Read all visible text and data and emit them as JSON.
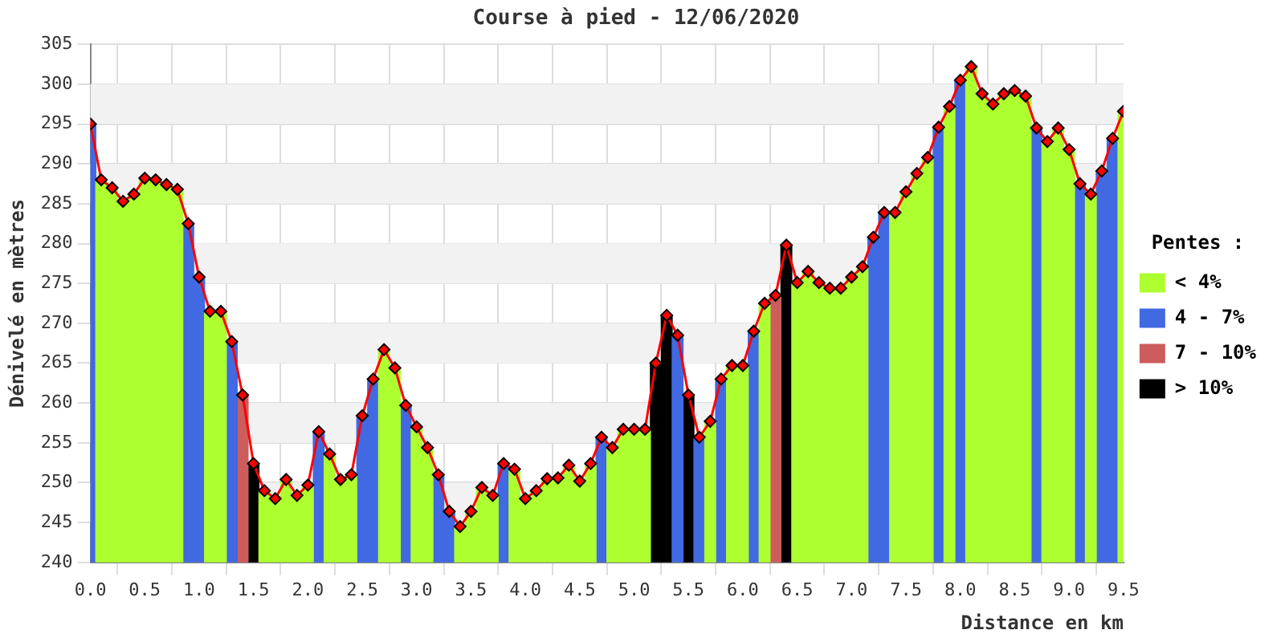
{
  "chart_data": {
    "type": "bar",
    "title": "Course à pied - 12/06/2020",
    "xlabel": "Distance en km",
    "ylabel": "Dénivelé en mètres",
    "legend_title": "Pentes :",
    "legend": "right",
    "grid": true,
    "x": [
      0,
      0.1,
      0.2,
      0.3,
      0.4,
      0.5,
      0.6,
      0.7,
      0.8,
      0.9,
      1,
      1.1,
      1.2,
      1.3,
      1.4,
      1.5,
      1.6,
      1.7,
      1.8,
      1.9,
      2,
      2.1,
      2.2,
      2.3,
      2.4,
      2.5,
      2.6,
      2.7,
      2.8,
      2.9,
      3,
      3.1,
      3.2,
      3.3,
      3.4,
      3.5,
      3.6,
      3.7,
      3.8,
      3.9,
      4,
      4.1,
      4.2,
      4.3,
      4.4,
      4.5,
      4.6,
      4.7,
      4.8,
      4.9,
      5,
      5.1,
      5.2,
      5.3,
      5.4,
      5.5,
      5.6,
      5.7,
      5.8,
      5.9,
      6,
      6.1,
      6.2,
      6.3,
      6.4,
      6.5,
      6.6,
      6.7,
      6.8,
      6.9,
      7,
      7.1,
      7.2,
      7.3,
      7.4,
      7.5,
      7.6,
      7.7,
      7.8,
      7.9,
      8,
      8.1,
      8.2,
      8.3,
      8.4,
      8.5,
      8.6,
      8.7,
      8.8,
      8.9,
      9,
      9.1,
      9.2,
      9.3,
      9.4,
      9.5
    ],
    "xlim": [
      0,
      9.5
    ],
    "xticks": [
      {
        "value": 0,
        "label": "0.0"
      },
      {
        "value": 0.5,
        "label": "0.5"
      },
      {
        "value": 1,
        "label": "1.0"
      },
      {
        "value": 1.5,
        "label": "1.5"
      },
      {
        "value": 2,
        "label": "2.0"
      },
      {
        "value": 2.5,
        "label": "2.5"
      },
      {
        "value": 3,
        "label": "3.0"
      },
      {
        "value": 3.5,
        "label": "3.5"
      },
      {
        "value": 4,
        "label": "4.0"
      },
      {
        "value": 4.5,
        "label": "4.5"
      },
      {
        "value": 5,
        "label": "5.0"
      },
      {
        "value": 5.5,
        "label": "5.5"
      },
      {
        "value": 6,
        "label": "6.0"
      },
      {
        "value": 6.5,
        "label": "6.5"
      },
      {
        "value": 7,
        "label": "7.0"
      },
      {
        "value": 7.5,
        "label": "7.5"
      },
      {
        "value": 8,
        "label": "8.0"
      },
      {
        "value": 8.5,
        "label": "8.5"
      },
      {
        "value": 9,
        "label": "9.0"
      },
      {
        "value": 9.5,
        "label": "9.5"
      }
    ],
    "ylim": [
      240,
      305
    ],
    "yticks": [
      240,
      245,
      250,
      255,
      260,
      265,
      270,
      275,
      280,
      285,
      290,
      295,
      300,
      305
    ],
    "series": [
      {
        "name": "< 4%",
        "color": "#adff2f",
        "values": [
          null,
          288,
          287,
          285.3,
          286.2,
          288.2,
          288,
          287.4,
          286.8,
          null,
          null,
          271.5,
          271.5,
          null,
          null,
          null,
          249,
          248,
          250.4,
          248.4,
          249.7,
          null,
          253.6,
          250.4,
          251,
          null,
          null,
          266.7,
          264.4,
          null,
          257,
          254.4,
          null,
          null,
          244.5,
          246.4,
          249.4,
          248.4,
          null,
          251.7,
          248,
          249,
          250.5,
          250.6,
          252.2,
          250.2,
          252.4,
          null,
          254.4,
          256.7,
          256.7,
          256.7,
          null,
          null,
          null,
          null,
          null,
          257.7,
          null,
          264.7,
          264.7,
          null,
          272.5,
          null,
          null,
          275.1,
          276.5,
          275.1,
          274.4,
          274.4,
          275.8,
          277.1,
          null,
          null,
          283.9,
          286.5,
          288.8,
          290.8,
          null,
          297.2,
          null,
          302.2,
          298.8,
          297.5,
          298.8,
          299.2,
          298.5,
          null,
          292.8,
          294.5,
          291.8,
          null,
          286.2,
          null,
          null,
          296.6
        ]
      },
      {
        "name": "4 - 7%",
        "color": "#4169e1",
        "values": [
          295,
          null,
          null,
          null,
          null,
          null,
          null,
          null,
          null,
          282.5,
          275.8,
          null,
          null,
          267.7,
          null,
          null,
          null,
          null,
          null,
          null,
          null,
          256.4,
          null,
          null,
          null,
          258.4,
          263,
          null,
          null,
          259.7,
          null,
          null,
          251,
          246.4,
          null,
          null,
          null,
          null,
          252.4,
          null,
          null,
          null,
          null,
          null,
          null,
          null,
          null,
          255.7,
          null,
          null,
          null,
          null,
          null,
          null,
          268.5,
          null,
          255.7,
          null,
          263,
          null,
          null,
          269,
          null,
          null,
          null,
          null,
          null,
          null,
          null,
          null,
          null,
          null,
          280.8,
          283.9,
          null,
          null,
          null,
          null,
          294.6,
          null,
          300.5,
          null,
          null,
          null,
          null,
          null,
          null,
          294.5,
          null,
          null,
          null,
          287.5,
          null,
          289.1,
          293.2,
          null
        ]
      },
      {
        "name": "7 - 10%",
        "color": "#cd5c5c",
        "values": [
          null,
          null,
          null,
          null,
          null,
          null,
          null,
          null,
          null,
          null,
          null,
          null,
          null,
          null,
          261,
          null,
          null,
          null,
          null,
          null,
          null,
          null,
          null,
          null,
          null,
          null,
          null,
          null,
          null,
          null,
          null,
          null,
          null,
          null,
          null,
          null,
          null,
          null,
          null,
          null,
          null,
          null,
          null,
          null,
          null,
          null,
          null,
          null,
          null,
          null,
          null,
          null,
          null,
          null,
          null,
          null,
          null,
          null,
          null,
          null,
          null,
          null,
          null,
          273.5,
          null,
          null,
          null,
          null,
          null,
          null,
          null,
          null,
          null,
          null,
          null,
          null,
          null,
          null,
          null,
          null,
          null,
          null,
          null,
          null,
          null,
          null,
          null,
          null,
          null,
          null,
          null,
          null,
          null,
          null,
          null,
          null
        ]
      },
      {
        "name": "> 10%",
        "color": "#000000",
        "values": [
          null,
          null,
          null,
          null,
          null,
          null,
          null,
          null,
          null,
          null,
          null,
          null,
          null,
          null,
          null,
          252.4,
          null,
          null,
          null,
          null,
          null,
          null,
          null,
          null,
          null,
          null,
          null,
          null,
          null,
          null,
          null,
          null,
          null,
          null,
          null,
          null,
          null,
          null,
          null,
          null,
          null,
          null,
          null,
          null,
          null,
          null,
          null,
          null,
          null,
          null,
          null,
          null,
          265,
          271,
          null,
          261,
          null,
          null,
          null,
          null,
          null,
          null,
          null,
          null,
          279.8,
          null,
          null,
          null,
          null,
          null,
          null,
          null,
          null,
          null,
          null,
          null,
          null,
          null,
          null,
          null,
          null,
          null,
          null,
          null,
          null,
          null,
          null,
          null,
          null,
          null,
          null,
          null,
          null,
          null,
          null,
          null
        ]
      },
      {
        "type": "line",
        "color": "#ff0000",
        "marker": "diamond",
        "values": [
          295,
          288,
          287,
          285.3,
          286.2,
          288.2,
          288,
          287.4,
          286.8,
          282.5,
          275.8,
          271.5,
          271.5,
          267.7,
          261,
          252.4,
          249,
          248,
          250.4,
          248.4,
          249.7,
          256.4,
          253.6,
          250.4,
          251,
          258.4,
          263,
          266.7,
          264.4,
          259.7,
          257,
          254.4,
          251,
          246.4,
          244.5,
          246.4,
          249.4,
          248.4,
          252.4,
          251.7,
          248,
          249,
          250.5,
          250.6,
          252.2,
          250.2,
          252.4,
          255.7,
          254.4,
          256.7,
          256.7,
          256.7,
          265,
          271,
          268.5,
          261,
          255.7,
          257.7,
          263,
          264.7,
          264.7,
          269,
          272.5,
          273.5,
          279.8,
          275.1,
          276.5,
          275.1,
          274.4,
          274.4,
          275.8,
          277.1,
          280.8,
          283.9,
          283.9,
          286.5,
          288.8,
          290.8,
          294.6,
          297.2,
          300.5,
          302.2,
          298.8,
          297.5,
          298.8,
          299.2,
          298.5,
          294.5,
          292.8,
          294.5,
          291.8,
          287.5,
          286.2,
          289.1,
          293.2,
          296.6
        ]
      }
    ]
  }
}
